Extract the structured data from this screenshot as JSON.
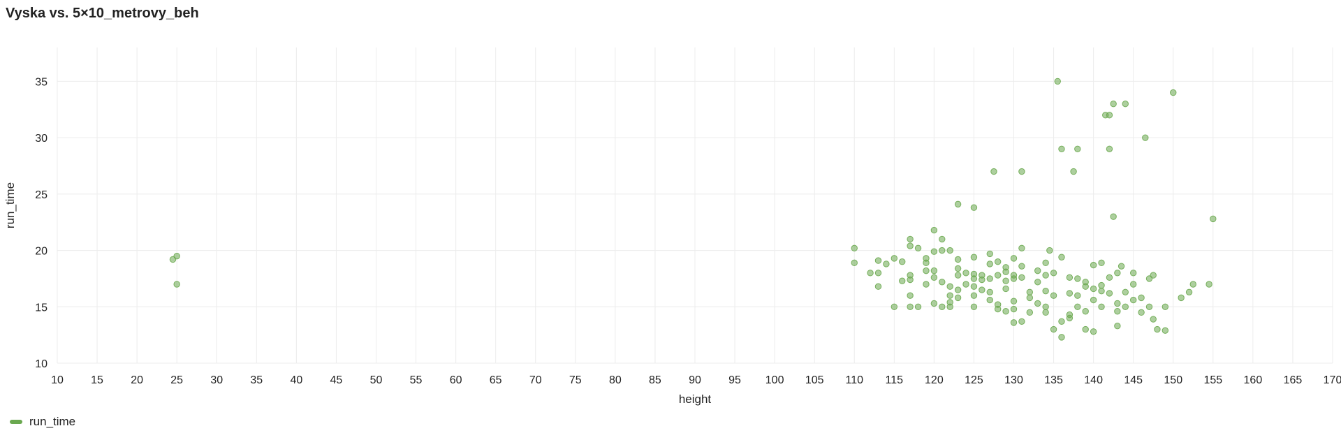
{
  "chart_data": {
    "type": "scatter",
    "title": "Vyska vs. 5×10_metrovy_beh",
    "xlabel": "height",
    "ylabel": "run_time",
    "xlim": [
      10,
      170
    ],
    "ylim": [
      10,
      38
    ],
    "xticks": [
      10,
      15,
      20,
      25,
      30,
      35,
      40,
      45,
      50,
      55,
      60,
      65,
      70,
      75,
      80,
      85,
      90,
      95,
      100,
      105,
      110,
      115,
      120,
      125,
      130,
      135,
      140,
      145,
      150,
      155,
      160,
      165,
      170
    ],
    "yticks": [
      10,
      15,
      20,
      25,
      30,
      35
    ],
    "grid": true,
    "legend_position": "bottom-left",
    "series": [
      {
        "name": "run_time",
        "color": "#6aa84f",
        "points": [
          [
            24.5,
            19.2
          ],
          [
            25,
            19.5
          ],
          [
            25,
            17
          ],
          [
            110,
            20.2
          ],
          [
            110,
            18.9
          ],
          [
            112,
            18
          ],
          [
            113,
            19.1
          ],
          [
            113,
            16.8
          ],
          [
            113,
            18
          ],
          [
            114,
            18.8
          ],
          [
            115,
            19.3
          ],
          [
            115,
            15
          ],
          [
            116,
            17.3
          ],
          [
            116,
            19
          ],
          [
            117,
            21
          ],
          [
            117,
            20.4
          ],
          [
            117,
            17.8
          ],
          [
            117,
            17.4
          ],
          [
            117,
            16
          ],
          [
            117,
            15
          ],
          [
            118,
            20.2
          ],
          [
            118,
            15
          ],
          [
            119,
            19.3
          ],
          [
            119,
            18.9
          ],
          [
            119,
            17
          ],
          [
            119,
            18.2
          ],
          [
            120,
            21.8
          ],
          [
            120,
            19.9
          ],
          [
            120,
            18.2
          ],
          [
            120,
            17.6
          ],
          [
            120,
            15.3
          ],
          [
            121,
            21
          ],
          [
            121,
            20
          ],
          [
            121,
            17.2
          ],
          [
            121,
            15
          ],
          [
            122,
            20
          ],
          [
            122,
            15
          ],
          [
            122,
            16
          ],
          [
            122,
            15.4
          ],
          [
            122,
            16.8
          ],
          [
            123,
            24.1
          ],
          [
            123,
            19.2
          ],
          [
            123,
            18.4
          ],
          [
            123,
            17.8
          ],
          [
            123,
            16.5
          ],
          [
            123,
            15.8
          ],
          [
            124,
            18
          ],
          [
            124,
            17
          ],
          [
            125,
            23.8
          ],
          [
            125,
            19.4
          ],
          [
            125,
            17.9
          ],
          [
            125,
            17.5
          ],
          [
            125,
            16.8
          ],
          [
            125,
            16
          ],
          [
            125,
            15
          ],
          [
            126,
            17.8
          ],
          [
            126,
            17.4
          ],
          [
            126,
            16.5
          ],
          [
            127,
            19.7
          ],
          [
            127,
            18.8
          ],
          [
            127,
            17.5
          ],
          [
            127,
            16.3
          ],
          [
            127,
            15.6
          ],
          [
            127.5,
            27
          ],
          [
            128,
            19
          ],
          [
            128,
            17.8
          ],
          [
            128,
            15.2
          ],
          [
            128,
            14.8
          ],
          [
            129,
            18.5
          ],
          [
            129,
            18.1
          ],
          [
            129,
            17.3
          ],
          [
            129,
            16.6
          ],
          [
            129,
            14.6
          ],
          [
            130,
            19.3
          ],
          [
            130,
            17.8
          ],
          [
            130,
            17.5
          ],
          [
            130,
            15.5
          ],
          [
            130,
            14.8
          ],
          [
            130,
            13.6
          ],
          [
            131,
            27
          ],
          [
            131,
            20.2
          ],
          [
            131,
            18.6
          ],
          [
            131,
            17.6
          ],
          [
            131,
            13.7
          ],
          [
            132,
            16.3
          ],
          [
            132,
            15.8
          ],
          [
            132,
            14.5
          ],
          [
            133,
            18.2
          ],
          [
            133,
            17.2
          ],
          [
            133,
            15.3
          ],
          [
            134,
            18.9
          ],
          [
            134,
            17.8
          ],
          [
            134,
            16.4
          ],
          [
            134,
            15
          ],
          [
            134,
            14.5
          ],
          [
            134.5,
            20
          ],
          [
            135,
            18
          ],
          [
            135,
            16
          ],
          [
            135,
            13
          ],
          [
            135.5,
            35
          ],
          [
            136,
            19.4
          ],
          [
            136,
            29
          ],
          [
            136,
            13.7
          ],
          [
            136,
            12.3
          ],
          [
            137,
            17.6
          ],
          [
            137,
            16.2
          ],
          [
            137,
            14
          ],
          [
            137,
            14.3
          ],
          [
            137.5,
            27
          ],
          [
            138,
            29
          ],
          [
            138,
            17.5
          ],
          [
            138,
            16
          ],
          [
            138,
            15
          ],
          [
            139,
            17.2
          ],
          [
            139,
            16.8
          ],
          [
            139,
            13
          ],
          [
            139,
            14.6
          ],
          [
            140,
            18.7
          ],
          [
            140,
            16.6
          ],
          [
            140,
            15.6
          ],
          [
            140,
            12.8
          ],
          [
            141,
            18.9
          ],
          [
            141,
            16.9
          ],
          [
            141,
            16.4
          ],
          [
            141,
            15
          ],
          [
            141.5,
            32
          ],
          [
            142,
            32
          ],
          [
            142,
            29
          ],
          [
            142,
            17.6
          ],
          [
            142,
            16.2
          ],
          [
            142.5,
            33
          ],
          [
            142.5,
            23
          ],
          [
            143,
            18
          ],
          [
            143,
            15.3
          ],
          [
            143,
            14.6
          ],
          [
            143,
            13.3
          ],
          [
            143.5,
            18.6
          ],
          [
            144,
            33
          ],
          [
            144,
            16.3
          ],
          [
            144,
            15
          ],
          [
            145,
            18
          ],
          [
            145,
            17
          ],
          [
            145,
            15.6
          ],
          [
            146,
            15.8
          ],
          [
            146,
            14.5
          ],
          [
            146.5,
            30
          ],
          [
            147,
            15
          ],
          [
            147,
            17.5
          ],
          [
            147.5,
            17.8
          ],
          [
            147.5,
            13.9
          ],
          [
            148,
            13
          ],
          [
            149,
            15
          ],
          [
            149,
            12.9
          ],
          [
            151,
            15.8
          ],
          [
            152,
            16.3
          ],
          [
            152.5,
            17
          ],
          [
            150,
            34
          ],
          [
            154.5,
            17
          ],
          [
            155,
            22.8
          ]
        ]
      }
    ]
  }
}
